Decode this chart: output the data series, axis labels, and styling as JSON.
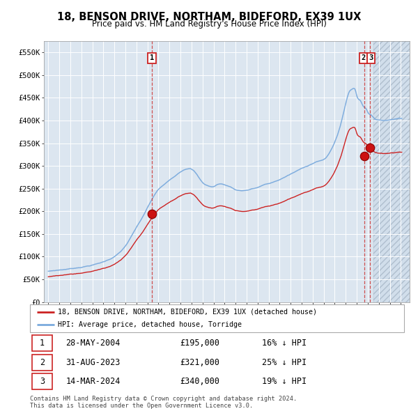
{
  "title": "18, BENSON DRIVE, NORTHAM, BIDEFORD, EX39 1UX",
  "subtitle": "Price paid vs. HM Land Registry's House Price Index (HPI)",
  "hpi_color": "#7aaadd",
  "price_color": "#cc2222",
  "background_color": "#dce6f0",
  "sale_points": [
    {
      "date_num": 2004.41,
      "price": 195000,
      "label": "1"
    },
    {
      "date_num": 2023.66,
      "price": 321000,
      "label": "2"
    },
    {
      "date_num": 2024.2,
      "price": 340000,
      "label": "3"
    }
  ],
  "vlines": [
    2004.41,
    2023.66,
    2024.2
  ],
  "ylim": [
    0,
    575000
  ],
  "xlim_start": 1994.6,
  "xlim_end": 2027.8,
  "yticks": [
    0,
    50000,
    100000,
    150000,
    200000,
    250000,
    300000,
    350000,
    400000,
    450000,
    500000,
    550000
  ],
  "ytick_labels": [
    "£0",
    "£50K",
    "£100K",
    "£150K",
    "£200K",
    "£250K",
    "£300K",
    "£350K",
    "£400K",
    "£450K",
    "£500K",
    "£550K"
  ],
  "xticks": [
    1995,
    1996,
    1997,
    1998,
    1999,
    2000,
    2001,
    2002,
    2003,
    2004,
    2005,
    2006,
    2007,
    2008,
    2009,
    2010,
    2011,
    2012,
    2013,
    2014,
    2015,
    2016,
    2017,
    2018,
    2019,
    2020,
    2021,
    2022,
    2023,
    2024,
    2025,
    2026,
    2027
  ],
  "legend_entries": [
    "18, BENSON DRIVE, NORTHAM, BIDEFORD, EX39 1UX (detached house)",
    "HPI: Average price, detached house, Torridge"
  ],
  "table_rows": [
    [
      "1",
      "28-MAY-2004",
      "£195,000",
      "16% ↓ HPI"
    ],
    [
      "2",
      "31-AUG-2023",
      "£321,000",
      "25% ↓ HPI"
    ],
    [
      "3",
      "14-MAR-2024",
      "£340,000",
      "19% ↓ HPI"
    ]
  ],
  "footer": "Contains HM Land Registry data © Crown copyright and database right 2024.\nThis data is licensed under the Open Government Licence v3.0."
}
